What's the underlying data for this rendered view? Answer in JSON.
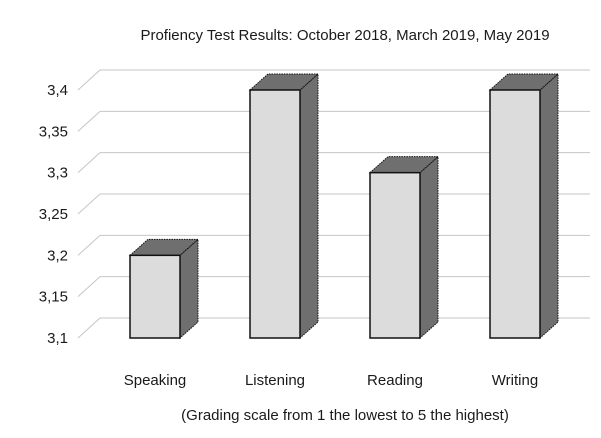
{
  "chart_data": {
    "type": "bar",
    "title": "Profiency Test Results: October 2018, March 2019, May 2019",
    "categories": [
      "Speaking",
      "Listening",
      "Reading",
      "Writing"
    ],
    "values": [
      3.2,
      3.4,
      3.3,
      3.4
    ],
    "ylim": [
      3.1,
      3.4
    ],
    "yticks": [
      "3,1",
      "3,15",
      "3,2",
      "3,25",
      "3,3",
      "3,35",
      "3,4"
    ],
    "ytick_values": [
      3.1,
      3.15,
      3.2,
      3.25,
      3.3,
      3.35,
      3.4
    ],
    "xlabel": "(Grading scale from 1 the lowest to 5 the highest)",
    "ylabel": "",
    "grid": true,
    "style": "3d-column",
    "colors": {
      "front": "#dcdcdc",
      "side": "#6f6f6f",
      "grid": "#c6c6c6"
    }
  }
}
